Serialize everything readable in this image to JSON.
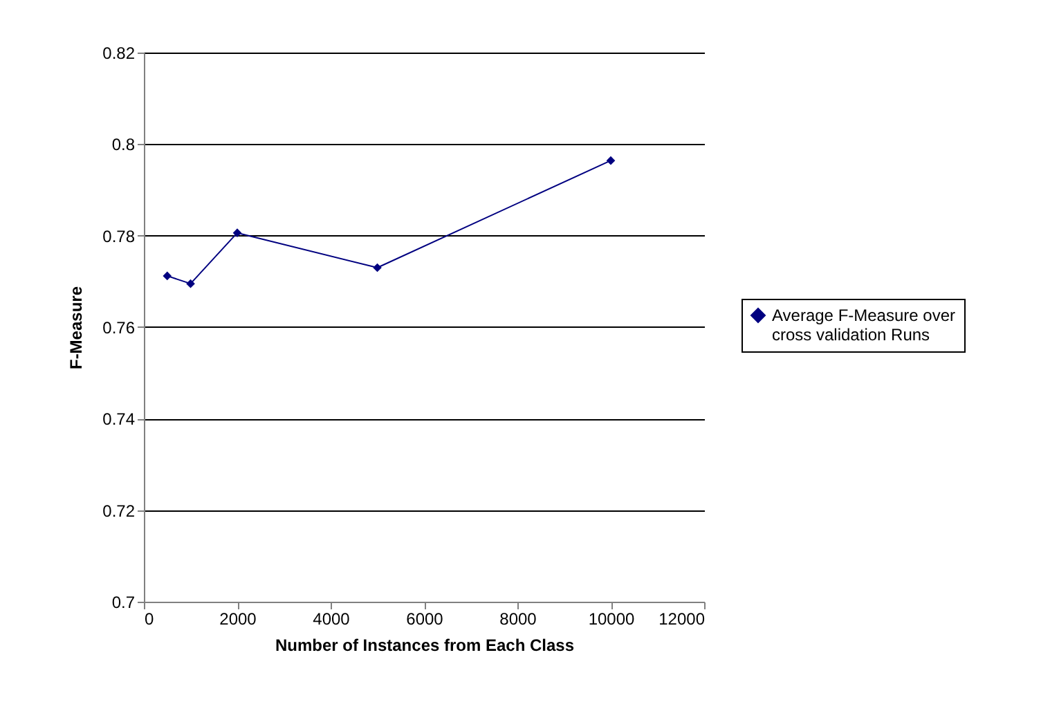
{
  "chart_data": {
    "type": "line",
    "xlabel": "Number of Instances from Each Class",
    "ylabel": "F-Measure",
    "x": [
      500,
      1000,
      2000,
      5000,
      10000
    ],
    "series": [
      {
        "name": "Average F-Measure over cross validation Runs",
        "color": "#000080",
        "values": [
          0.7712,
          0.7695,
          0.7806,
          0.773,
          0.7964
        ]
      }
    ],
    "xlim": [
      0,
      12000
    ],
    "xticks": [
      0,
      2000,
      4000,
      6000,
      8000,
      10000,
      12000
    ],
    "ylim": [
      0.7,
      0.82
    ],
    "yticks": [
      0.7,
      0.72,
      0.74,
      0.76,
      0.78,
      0.8,
      0.82
    ],
    "grid": "y",
    "legend": "right",
    "marker": "diamond",
    "line_style": "solid"
  }
}
